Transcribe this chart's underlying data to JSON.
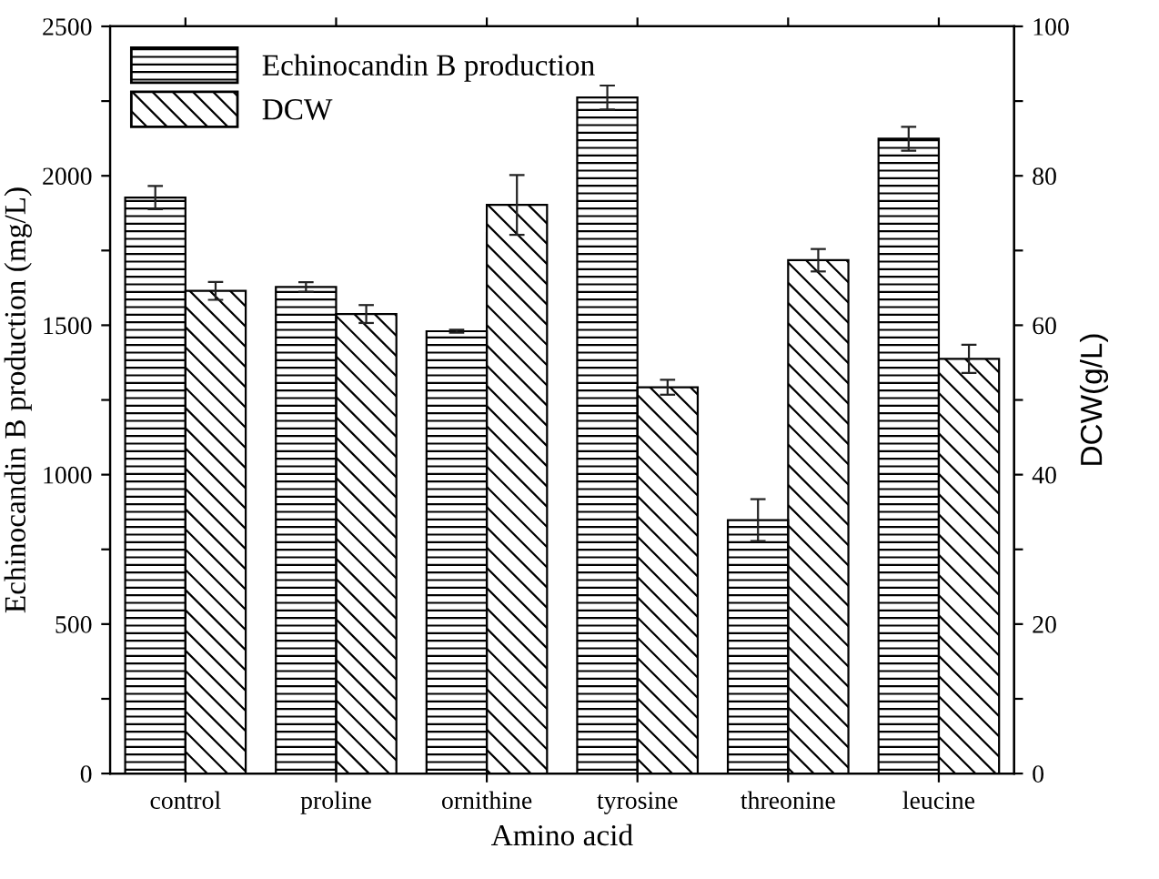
{
  "chart_data": {
    "type": "bar",
    "xlabel": "Amino acid",
    "ylabel": "Echinocandin B production (mg/L)",
    "y2label": "DCW(g/L)",
    "categories": [
      "control",
      "proline",
      "ornithine",
      "tyrosine",
      "threonine",
      "leucine"
    ],
    "series": [
      {
        "name": "Echinocandin B production",
        "color": "#000000",
        "values": [
          1927,
          1628,
          1480,
          2262,
          848,
          2124
        ],
        "errors": [
          39,
          16,
          5,
          40,
          70,
          40
        ]
      },
      {
        "name": "DCW",
        "color": "#000000",
        "axis": "y2",
        "values": [
          64.6,
          61.5,
          76.1,
          51.7,
          68.7,
          55.5
        ],
        "errors": [
          1.2,
          1.2,
          4,
          1,
          1.5,
          1.9
        ]
      }
    ],
    "ylim": [
      0,
      2500
    ],
    "yticks": [
      0,
      {
        "value": 250,
        "label": null
      },
      500,
      {
        "value": 750,
        "label": null
      },
      1000,
      {
        "value": 1250,
        "label": null
      },
      1500,
      {
        "value": 1750,
        "label": null
      },
      2000,
      {
        "value": 2250,
        "label": null
      },
      2500
    ],
    "y2lim": [
      0,
      100
    ],
    "y2ticks": [
      0,
      {
        "value": 10,
        "label": null
      },
      20,
      {
        "value": 30,
        "label": null
      },
      40,
      {
        "value": 50,
        "label": null
      },
      60,
      {
        "value": 70,
        "label": null
      },
      80,
      {
        "value": 90,
        "label": null
      },
      100
    ],
    "legend": "top left",
    "grid": false
  }
}
